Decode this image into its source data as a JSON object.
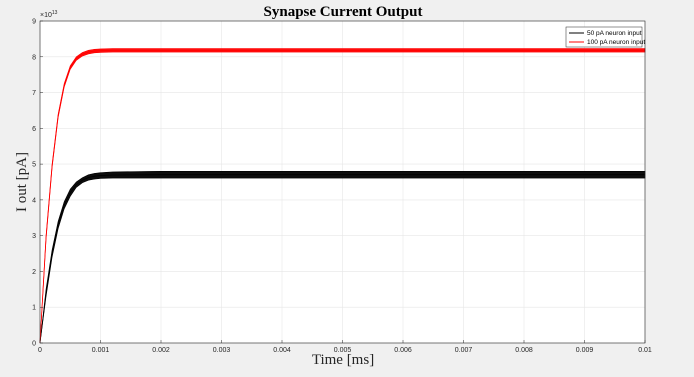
{
  "chart_data": {
    "type": "line",
    "title": "Synapse Current Output",
    "xlabel": "Time [ms]",
    "ylabel": "I out [pA]",
    "y_exponent_label": "×10",
    "y_exponent_power": "13",
    "xlim": [
      0,
      0.01
    ],
    "ylim": [
      0,
      9
    ],
    "x_ticks": [
      "0",
      "0.001",
      "0.002",
      "0.003",
      "0.004",
      "0.005",
      "0.006",
      "0.007",
      "0.008",
      "0.009",
      "0.01"
    ],
    "y_ticks": [
      "0",
      "1",
      "2",
      "3",
      "4",
      "5",
      "6",
      "7",
      "8",
      "9"
    ],
    "grid": true,
    "legend_position": "top-right",
    "series": [
      {
        "name": "50 pA neuron input",
        "color": "#000000",
        "band": true,
        "x": [
          0,
          0.0001,
          0.0002,
          0.0003,
          0.0004,
          0.0005,
          0.0006,
          0.0007,
          0.0008,
          0.0009,
          0.001,
          0.0012,
          0.0015,
          0.002,
          0.003,
          0.005,
          0.007,
          0.01
        ],
        "y_upper": [
          0.0,
          1.5,
          2.6,
          3.4,
          3.95,
          4.3,
          4.5,
          4.62,
          4.7,
          4.74,
          4.76,
          4.78,
          4.79,
          4.8,
          4.8,
          4.8,
          4.8,
          4.8
        ],
        "y_lower": [
          0.0,
          1.3,
          2.4,
          3.2,
          3.75,
          4.1,
          4.35,
          4.48,
          4.55,
          4.58,
          4.6,
          4.61,
          4.61,
          4.61,
          4.61,
          4.61,
          4.61,
          4.61
        ]
      },
      {
        "name": "100 pA neuron input",
        "color": "#ff0000",
        "band": true,
        "x": [
          0,
          0.0001,
          0.0002,
          0.0003,
          0.0004,
          0.0005,
          0.0006,
          0.0007,
          0.0008,
          0.0009,
          0.001,
          0.0012,
          0.0015,
          0.002,
          0.003,
          0.005,
          0.007,
          0.01
        ],
        "y_upper": [
          0.0,
          3.0,
          5.0,
          6.4,
          7.25,
          7.75,
          8.0,
          8.12,
          8.18,
          8.21,
          8.22,
          8.23,
          8.23,
          8.23,
          8.23,
          8.23,
          8.23,
          8.23
        ],
        "y_lower": [
          0.0,
          2.9,
          4.9,
          6.3,
          7.15,
          7.65,
          7.9,
          8.02,
          8.08,
          8.11,
          8.12,
          8.13,
          8.13,
          8.13,
          8.13,
          8.13,
          8.13,
          8.13
        ]
      }
    ]
  }
}
